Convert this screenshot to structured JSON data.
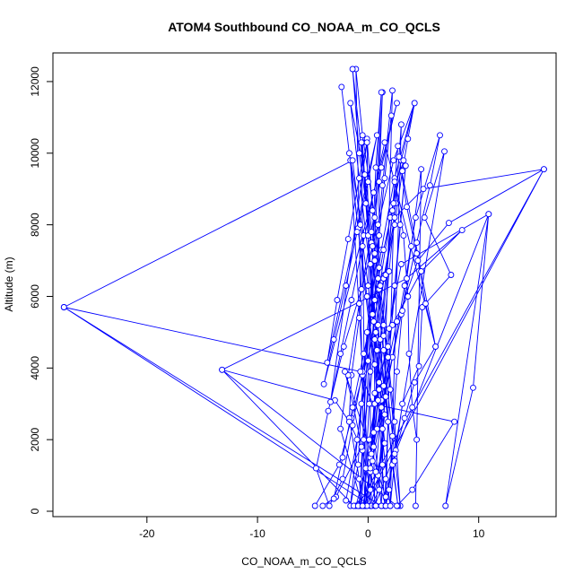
{
  "chart_data": {
    "type": "scatter",
    "title": "ATOM4 Southbound CO_NOAA_m_CO_QCLS",
    "xlabel": "CO_NOAA_m_CO_QCLS",
    "ylabel": "Altitude (m)",
    "xlim": [
      -28.5,
      17
    ],
    "ylim": [
      -150,
      12800
    ],
    "xticks": [
      -20,
      -10,
      0,
      10
    ],
    "yticks": [
      0,
      2000,
      4000,
      6000,
      8000,
      10000,
      12000
    ],
    "grid": false,
    "legend": "none",
    "line_color": "#0000ff",
    "marker": "open-circle",
    "series": [
      {
        "points": [
          [
            -4.8,
            150
          ],
          [
            -2.6,
            1300
          ],
          [
            -1.5,
            2600
          ],
          [
            -0.5,
            3800
          ],
          [
            0.8,
            5200
          ],
          [
            1.5,
            6600
          ],
          [
            2.4,
            8000
          ],
          [
            3.1,
            9500
          ],
          [
            3.6,
            10400
          ],
          [
            4.2,
            11400
          ],
          [
            2.4,
            9300
          ],
          [
            1.2,
            7300
          ],
          [
            0.3,
            5500
          ],
          [
            -0.5,
            3900
          ],
          [
            -1.4,
            2400
          ],
          [
            -2.3,
            900
          ],
          [
            -3.5,
            150
          ],
          [
            -4.7,
            1200
          ],
          [
            -3.6,
            2800
          ],
          [
            -2.2,
            4600
          ],
          [
            -0.6,
            6200
          ],
          [
            0.9,
            8000
          ],
          [
            2.3,
            9800
          ],
          [
            4.2,
            11400
          ],
          [
            3.0,
            9800
          ],
          [
            2.0,
            8200
          ],
          [
            1.0,
            6200
          ],
          [
            0.0,
            4200
          ],
          [
            -1.0,
            2000
          ],
          [
            -2.0,
            300
          ],
          [
            -1.1,
            150
          ],
          [
            0.8,
            2300
          ],
          [
            2.2,
            4300
          ],
          [
            3.3,
            6300
          ],
          [
            4.3,
            8200
          ],
          [
            6.5,
            10500
          ],
          [
            5.6,
            9100
          ],
          [
            4.4,
            7500
          ],
          [
            3.0,
            5500
          ],
          [
            1.5,
            3200
          ],
          [
            0.2,
            1100
          ],
          [
            -0.3,
            150
          ],
          [
            -1.1,
            12350
          ],
          [
            -0.5,
            10500
          ],
          [
            0.6,
            8200
          ],
          [
            1.1,
            6300
          ],
          [
            1.8,
            4300
          ],
          [
            2.4,
            2500
          ],
          [
            2.9,
            150
          ],
          [
            -1.4,
            12350
          ],
          [
            -0.8,
            10000
          ],
          [
            0.3,
            7500
          ],
          [
            0.9,
            5200
          ],
          [
            1.6,
            3200
          ],
          [
            2.2,
            1300
          ],
          [
            2.7,
            150
          ],
          [
            -1.6,
            11400
          ],
          [
            -0.3,
            9400
          ],
          [
            0.6,
            7200
          ],
          [
            1.4,
            5200
          ],
          [
            2.0,
            3400
          ],
          [
            2.5,
            1700
          ],
          [
            2.0,
            150
          ],
          [
            -2.4,
            11850
          ],
          [
            -1.7,
            10000
          ],
          [
            -0.4,
            7700
          ],
          [
            -0.8,
            5400
          ],
          [
            -1.5,
            3800
          ],
          [
            -1.7,
            2600
          ],
          [
            -0.8,
            900
          ],
          [
            -0.6,
            150
          ],
          [
            1.3,
            11700
          ],
          [
            1.0,
            9200
          ],
          [
            1.0,
            6800
          ],
          [
            0.9,
            4500
          ],
          [
            0.5,
            2200
          ],
          [
            1.2,
            150
          ],
          [
            2.2,
            11750
          ],
          [
            1.3,
            9100
          ],
          [
            0.6,
            7000
          ],
          [
            -0.1,
            5000
          ],
          [
            -0.6,
            3000
          ],
          [
            -0.9,
            1300
          ],
          [
            -1.6,
            150
          ],
          [
            2.1,
            11050
          ],
          [
            1.5,
            9300
          ],
          [
            1.0,
            7700
          ],
          [
            0.6,
            5900
          ],
          [
            0.2,
            3900
          ],
          [
            -0.4,
            2000
          ],
          [
            -0.8,
            150
          ],
          [
            1.2,
            11700
          ],
          [
            0.7,
            9600
          ],
          [
            0.4,
            7400
          ],
          [
            0.5,
            5300
          ],
          [
            0.6,
            3300
          ],
          [
            0.2,
            1500
          ],
          [
            0.3,
            150
          ],
          [
            -0.1,
            10400
          ],
          [
            0.4,
            8400
          ],
          [
            0.9,
            6500
          ],
          [
            1.4,
            4500
          ],
          [
            1.8,
            2500
          ],
          [
            1.6,
            900
          ],
          [
            1.5,
            150
          ],
          [
            -0.5,
            10300
          ],
          [
            -0.2,
            8600
          ],
          [
            0.2,
            6900
          ],
          [
            0.7,
            5000
          ],
          [
            1.2,
            3100
          ],
          [
            1.3,
            1300
          ],
          [
            0.2,
            150
          ],
          [
            -1.6,
            9800
          ],
          [
            -0.9,
            7900
          ],
          [
            -0.1,
            6000
          ],
          [
            0.6,
            4100
          ],
          [
            1.3,
            2300
          ],
          [
            1.0,
            600
          ],
          [
            0.3,
            150
          ],
          [
            -27.5,
            5700
          ],
          [
            -1.4,
            9800
          ],
          [
            -0.7,
            8000
          ],
          [
            0.0,
            6300
          ],
          [
            0.8,
            4500
          ],
          [
            1.5,
            2700
          ],
          [
            0.9,
            1000
          ],
          [
            1.2,
            150
          ],
          [
            -27.5,
            5700
          ],
          [
            -0.7,
            3900
          ],
          [
            0.4,
            3000
          ],
          [
            7.8,
            2500
          ],
          [
            4.0,
            600
          ],
          [
            2.6,
            150
          ],
          [
            -13.2,
            3950
          ],
          [
            -3.0,
            3100
          ],
          [
            -1.7,
            2500
          ],
          [
            -0.5,
            1700
          ],
          [
            0.2,
            600
          ],
          [
            -1.3,
            150
          ],
          [
            -13.2,
            3950
          ],
          [
            3.5,
            6500
          ],
          [
            8.5,
            7850
          ],
          [
            4.8,
            6700
          ],
          [
            2.2,
            5200
          ],
          [
            1.0,
            3600
          ],
          [
            0.1,
            2000
          ],
          [
            -0.4,
            150
          ],
          [
            15.9,
            9550
          ],
          [
            5.0,
            9000
          ],
          [
            2.4,
            8200
          ],
          [
            1.4,
            6500
          ],
          [
            0.6,
            4800
          ],
          [
            0.1,
            3000
          ],
          [
            -0.2,
            1200
          ],
          [
            -0.9,
            150
          ],
          [
            15.9,
            9550
          ],
          [
            7.3,
            8050
          ],
          [
            4.5,
            7000
          ],
          [
            2.6,
            5300
          ],
          [
            1.4,
            3500
          ],
          [
            0.5,
            1800
          ],
          [
            0.6,
            150
          ],
          [
            10.9,
            8300
          ],
          [
            9.5,
            3450
          ],
          [
            7.0,
            150
          ],
          [
            10.9,
            8300
          ],
          [
            3.0,
            6900
          ],
          [
            1.9,
            5100
          ],
          [
            1.0,
            3400
          ],
          [
            0.3,
            1600
          ],
          [
            -0.2,
            150
          ],
          [
            -0.6,
            10300
          ],
          [
            0.0,
            7700
          ],
          [
            0.4,
            5500
          ],
          [
            1.0,
            3600
          ],
          [
            1.5,
            1900
          ],
          [
            -0.1,
            150
          ],
          [
            2.7,
            10200
          ],
          [
            2.2,
            8400
          ],
          [
            1.6,
            6600
          ],
          [
            1.1,
            4800
          ],
          [
            0.6,
            3000
          ],
          [
            0.2,
            1200
          ],
          [
            0.7,
            150
          ],
          [
            3.4,
            9650
          ],
          [
            2.9,
            8000
          ],
          [
            2.4,
            6300
          ],
          [
            1.8,
            4600
          ],
          [
            1.2,
            2900
          ],
          [
            0.7,
            1100
          ],
          [
            1.6,
            150
          ],
          [
            2.4,
            9200
          ],
          [
            3.2,
            7700
          ],
          [
            3.6,
            6000
          ],
          [
            3.7,
            4400
          ],
          [
            4.0,
            2900
          ],
          [
            4.4,
            2000
          ],
          [
            4.3,
            150
          ],
          [
            4.8,
            9550
          ],
          [
            3.9,
            7400
          ],
          [
            3.1,
            5600
          ],
          [
            2.6,
            3900
          ],
          [
            2.2,
            2100
          ],
          [
            1.9,
            600
          ],
          [
            1.6,
            150
          ],
          [
            6.9,
            10050
          ],
          [
            5.1,
            8200
          ],
          [
            7.5,
            6600
          ],
          [
            4.9,
            5700
          ],
          [
            4.6,
            4050
          ],
          [
            3.1,
            3000
          ],
          [
            2.4,
            1400
          ],
          [
            2.0,
            150
          ],
          [
            3.0,
            10800
          ],
          [
            2.5,
            8600
          ],
          [
            1.9,
            6700
          ],
          [
            1.4,
            4900
          ],
          [
            0.9,
            3100
          ],
          [
            0.4,
            1400
          ],
          [
            -0.5,
            150
          ],
          [
            -2.5,
            2300
          ],
          [
            -1.8,
            3800
          ],
          [
            -0.8,
            5800
          ],
          [
            0.3,
            7800
          ],
          [
            1.2,
            9600
          ],
          [
            2.6,
            11400
          ],
          [
            -4.0,
            3550
          ],
          [
            -3.1,
            4800
          ],
          [
            -2.0,
            6300
          ],
          [
            -1.0,
            7800
          ],
          [
            0.0,
            9200
          ],
          [
            0.8,
            10500
          ],
          [
            -3.7,
            4150
          ],
          [
            -2.8,
            5900
          ],
          [
            -1.8,
            7600
          ],
          [
            -0.8,
            9300
          ],
          [
            -0.1,
            10300
          ],
          [
            -3.4,
            3050
          ],
          [
            -2.5,
            4400
          ],
          [
            -1.5,
            5900
          ],
          [
            -0.5,
            7400
          ],
          [
            0.5,
            8900
          ],
          [
            1.5,
            10300
          ],
          [
            6.1,
            4600
          ],
          [
            5.2,
            5800
          ],
          [
            4.4,
            7200
          ],
          [
            3.5,
            8500
          ],
          [
            2.8,
            9900
          ],
          [
            6.1,
            4600
          ],
          [
            4.2,
            3600
          ],
          [
            3.3,
            2600
          ],
          [
            2.4,
            1600
          ],
          [
            1.6,
            400
          ],
          [
            -2.1,
            3900
          ],
          [
            -1.3,
            2900
          ],
          [
            -0.6,
            1800
          ],
          [
            -2.9,
            400
          ],
          [
            -4.1,
            150
          ],
          [
            -3.1,
            350
          ],
          [
            -2.3,
            1500
          ],
          [
            -1.4,
            2900
          ],
          [
            -0.4,
            4400
          ],
          [
            0.6,
            5900
          ],
          [
            1.4,
            7300
          ],
          [
            2.3,
            8600
          ],
          [
            3.2,
            9800
          ]
        ]
      }
    ]
  }
}
